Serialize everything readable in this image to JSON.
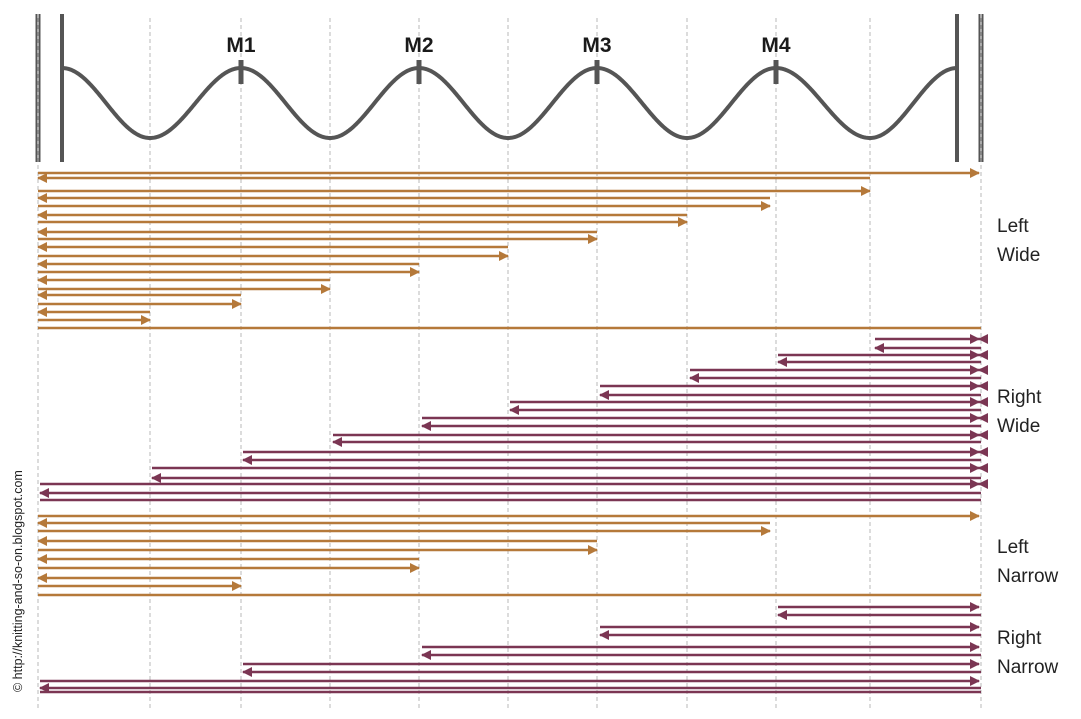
{
  "colors": {
    "left_rows": "#b5793a",
    "right_rows": "#7b3653",
    "needle": "#555555",
    "guide": "#b8b8b8"
  },
  "markers": [
    "M1",
    "M2",
    "M3",
    "M4"
  ],
  "sections": {
    "left_wide": [
      "Left",
      "Wide"
    ],
    "right_wide": [
      "Right",
      "Wide"
    ],
    "left_narrow": [
      "Left",
      "Narrow"
    ],
    "right_narrow": [
      "Right",
      "Narrow"
    ]
  },
  "credit": "© http://knitting-and-so-on.blogspot.com"
}
